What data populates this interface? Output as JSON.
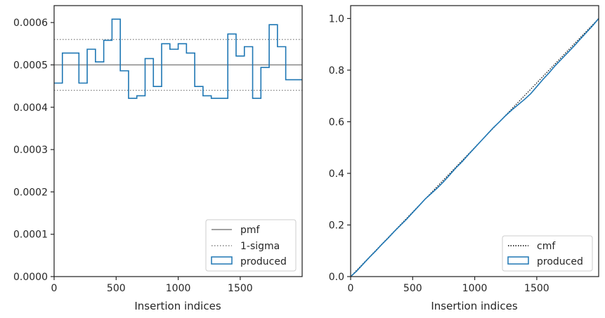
{
  "chart_data": [
    {
      "type": "line",
      "xlabel": "Insertion indices",
      "ylabel": "",
      "xlim": [
        0,
        1999
      ],
      "ylim": [
        0,
        0.00064
      ],
      "xticks": [
        0,
        500,
        1000,
        1500
      ],
      "xtick_labels": [
        "0",
        "500",
        "1000",
        "1500"
      ],
      "yticks": [
        0,
        0.0001,
        0.0002,
        0.0003,
        0.0004,
        0.0005,
        0.0006
      ],
      "ytick_labels": [
        "0.0000",
        "0.0001",
        "0.0002",
        "0.0003",
        "0.0004",
        "0.0005",
        "0.0006"
      ],
      "grid": false,
      "legend_position": "bottom-right",
      "legend": [
        "pmf",
        "1-sigma",
        "produced"
      ],
      "reference_lines": [
        {
          "name": "pmf",
          "y": 0.0005,
          "style": "solid",
          "color": "#808080"
        },
        {
          "name": "1-sigma",
          "y": 0.00056,
          "style": "dotted",
          "color": "#808080"
        },
        {
          "name": "1-sigma",
          "y": 0.00044,
          "style": "dotted",
          "color": "#808080"
        }
      ],
      "series": [
        {
          "name": "produced",
          "kind": "step-histogram",
          "color": "#1f77b4",
          "bin_edges": [
            0,
            66.6,
            133.3,
            200,
            266.6,
            333.3,
            400,
            466.6,
            533.3,
            600,
            666.6,
            733.3,
            800,
            866.6,
            933.3,
            1000,
            1066.6,
            1133.3,
            1200,
            1266.6,
            1333.3,
            1400,
            1466.6,
            1533.3,
            1600,
            1666.6,
            1733.3,
            1800,
            1866.6,
            1933.3,
            1999
          ],
          "values": [
            0.000457,
            0.000528,
            0.000528,
            0.000457,
            0.000537,
            0.000507,
            0.000558,
            0.000608,
            0.000486,
            0.000421,
            0.000427,
            0.000515,
            0.000449,
            0.00055,
            0.000537,
            0.00055,
            0.000528,
            0.000449,
            0.000427,
            0.000421,
            0.000421,
            0.000573,
            0.000521,
            0.000543,
            0.000421,
            0.000494,
            0.000595,
            0.000543,
            0.000465,
            0.000465
          ]
        }
      ]
    },
    {
      "type": "line",
      "xlabel": "Insertion indices",
      "ylabel": "",
      "xlim": [
        0,
        1999
      ],
      "ylim": [
        0,
        1.05
      ],
      "xticks": [
        0,
        500,
        1000,
        1500
      ],
      "xtick_labels": [
        "0",
        "500",
        "1000",
        "1500"
      ],
      "yticks": [
        0,
        0.2,
        0.4,
        0.6,
        0.8,
        1.0
      ],
      "ytick_labels": [
        "0.0",
        "0.2",
        "0.4",
        "0.6",
        "0.8",
        "1.0"
      ],
      "grid": false,
      "legend_position": "bottom-right",
      "legend": [
        "cmf",
        "produced"
      ],
      "series": [
        {
          "name": "cmf",
          "style": "dotted",
          "color": "#000000",
          "x": [
            0,
            1999
          ],
          "y": [
            0,
            1.0
          ]
        },
        {
          "name": "produced",
          "kind": "step-histogram",
          "color": "#1f77b4",
          "x": [
            0,
            50,
            100,
            150,
            200,
            250,
            300,
            350,
            400,
            450,
            500,
            550,
            600,
            650,
            700,
            750,
            800,
            850,
            900,
            950,
            1000,
            1050,
            1100,
            1150,
            1200,
            1250,
            1300,
            1350,
            1400,
            1450,
            1500,
            1550,
            1600,
            1650,
            1700,
            1750,
            1800,
            1850,
            1900,
            1950,
            1999
          ],
          "y": [
            0,
            0.022,
            0.048,
            0.074,
            0.098,
            0.124,
            0.148,
            0.174,
            0.198,
            0.222,
            0.248,
            0.274,
            0.3,
            0.322,
            0.344,
            0.368,
            0.395,
            0.422,
            0.446,
            0.473,
            0.499,
            0.525,
            0.551,
            0.577,
            0.6,
            0.624,
            0.646,
            0.666,
            0.686,
            0.708,
            0.736,
            0.764,
            0.79,
            0.818,
            0.843,
            0.868,
            0.893,
            0.92,
            0.946,
            0.972,
            1.0
          ]
        }
      ]
    }
  ]
}
